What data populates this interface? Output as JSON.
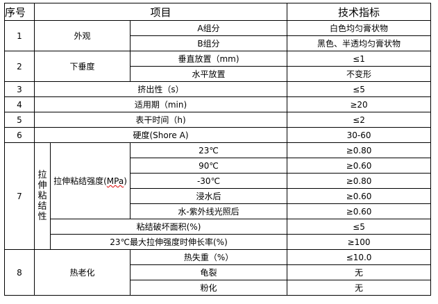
{
  "header": {
    "no": "序号",
    "item": "项目",
    "spec": "技术指标"
  },
  "r1": {
    "no": "1",
    "item": "外观",
    "a": "A组分",
    "a_spec": "白色均匀膏状物",
    "b": "B组分",
    "b_spec": "黑色、半透均匀膏状物"
  },
  "r2": {
    "no": "2",
    "item": "下垂度",
    "a": "垂直放置（mm)",
    "a_spec": "≤1",
    "b": "水平放置",
    "b_spec": "不变形"
  },
  "r3": {
    "no": "3",
    "item": "挤出性（s）",
    "spec": "≤5"
  },
  "r4": {
    "no": "4",
    "item": "适用期（min)",
    "spec": "≥20"
  },
  "r5": {
    "no": "5",
    "item": "表干时间（h)",
    "spec": "≤2"
  },
  "r6": {
    "no": "6",
    "item": "硬度(Shore A)",
    "spec": "30-60"
  },
  "r7": {
    "no": "7",
    "item": "拉伸粘结性",
    "sub": "拉伸粘结强度(",
    "sub_unit": "MPa",
    "sub_close": ")",
    "conds": [
      {
        "c": "23℃",
        "s": "≥0.80"
      },
      {
        "c": "90℃",
        "s": "≥0.60"
      },
      {
        "c": "-30℃",
        "s": "≥0.80"
      },
      {
        "c": "浸水后",
        "s": "≥0.60"
      },
      {
        "c": "水-紫外线光照后",
        "s": "≥0.60"
      }
    ],
    "area": "粘结破坏面积(%)",
    "area_spec": "≤5",
    "elong": "23℃最大拉伸强度时伸长率(%)",
    "elong_spec": "≥100"
  },
  "r8": {
    "no": "8",
    "item": "热老化",
    "rows": [
      {
        "c": "热失重（%）",
        "s": "≤10.0"
      },
      {
        "c": "龟裂",
        "s": "无"
      },
      {
        "c": "粉化",
        "s": "无"
      }
    ]
  }
}
